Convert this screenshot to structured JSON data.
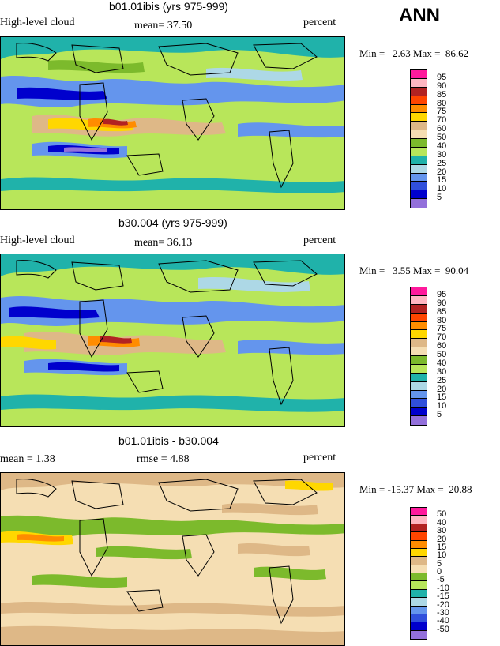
{
  "season": "ANN",
  "panels": [
    {
      "title": "b01.01ibis (yrs 975-999)",
      "left_label": "High-level cloud",
      "center_label": "mean=  37.50",
      "right_label": "percent",
      "minmax": "Min =   2.63 Max =  86.62",
      "colorbar": {
        "labels": [
          "95",
          "90",
          "85",
          "80",
          "75",
          "70",
          "60",
          "50",
          "40",
          "30",
          "25",
          "20",
          "15",
          "10",
          "5"
        ],
        "colors": [
          "#ff1a9c",
          "#ffb6c1",
          "#b22222",
          "#ff4500",
          "#ff8c00",
          "#ffd700",
          "#deb887",
          "#f5deb3",
          "#7cba2c",
          "#b8e65a",
          "#20b2aa",
          "#add8e6",
          "#6495ed",
          "#3050dc",
          "#0000cd",
          "#9370db"
        ]
      }
    },
    {
      "title": "b30.004 (yrs 975-999)",
      "left_label": "High-level cloud",
      "center_label": "mean=  36.13",
      "right_label": "percent",
      "minmax": "Min =   3.55 Max =  90.04",
      "colorbar": {
        "labels": [
          "95",
          "90",
          "85",
          "80",
          "75",
          "70",
          "60",
          "50",
          "40",
          "30",
          "25",
          "20",
          "15",
          "10",
          "5"
        ],
        "colors": [
          "#ff1a9c",
          "#ffb6c1",
          "#b22222",
          "#ff4500",
          "#ff8c00",
          "#ffd700",
          "#deb887",
          "#f5deb3",
          "#7cba2c",
          "#b8e65a",
          "#20b2aa",
          "#add8e6",
          "#6495ed",
          "#3050dc",
          "#0000cd",
          "#9370db"
        ]
      }
    },
    {
      "title": "b01.01ibis - b30.004",
      "left_label": "mean =   1.38",
      "center_label": "rmse =   4.88",
      "right_label": "percent",
      "minmax": "Min = -15.37 Max =  20.88",
      "colorbar": {
        "labels": [
          "50",
          "40",
          "30",
          "20",
          "15",
          "10",
          "5",
          "0",
          "-5",
          "-10",
          "-15",
          "-20",
          "-30",
          "-40",
          "-50"
        ],
        "colors": [
          "#ff1a9c",
          "#ffb6c1",
          "#b22222",
          "#ff4500",
          "#ff8c00",
          "#ffd700",
          "#deb887",
          "#f5deb3",
          "#7cba2c",
          "#b8e65a",
          "#20b2aa",
          "#add8e6",
          "#6495ed",
          "#3050dc",
          "#0000cd",
          "#9370db"
        ]
      }
    }
  ]
}
